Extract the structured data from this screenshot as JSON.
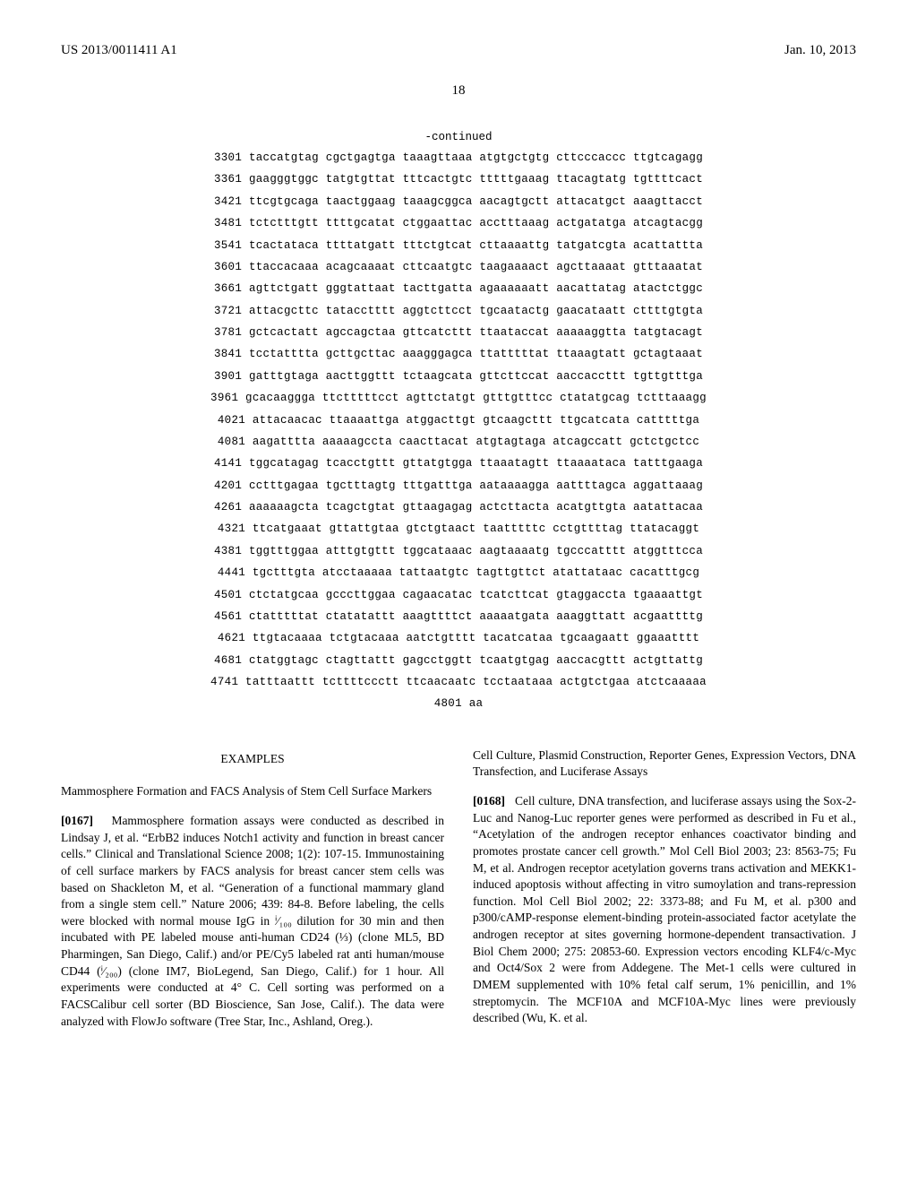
{
  "header": {
    "left": "US 2013/0011411 A1",
    "right": "Jan. 10, 2013"
  },
  "page_number": "18",
  "sequence": {
    "continued_label": "-continued",
    "lines": [
      "3301 taccatgtag cgctgagtga taaagttaaa atgtgctgtg cttcccaccc ttgtcagagg",
      "3361 gaagggtggc tatgtgttat tttcactgtc tttttgaaag ttacagtatg tgttttcact",
      "3421 ttcgtgcaga taactggaag taaagcggca aacagtgctt attacatgct aaagttacct",
      "3481 tctctttgtt ttttgcatat ctggaattac acctttaaag actgatatga atcagtacgg",
      "3541 tcactataca ttttatgatt tttctgtcat cttaaaattg tatgatcgta acattattta",
      "3601 ttaccacaaa acagcaaaat cttcaatgtc taagaaaact agcttaaaat gtttaaatat",
      "3661 agttctgatt gggtattaat tacttgatta agaaaaaatt aacattatag atactctggc",
      "3721 attacgcttc tatacctttt aggtcttcct tgcaatactg gaacataatt cttttgtgta",
      "3781 gctcactatt agccagctaa gttcatcttt ttaataccat aaaaaggtta tatgtacagt",
      "3841 tcctatttta gcttgcttac aaagggagca ttatttttat ttaaagtatt gctagtaaat",
      "3901 gatttgtaga aacttggttt tctaagcata gttcttccat aaccaccttt tgttgtttga",
      "3961 gcacaaggga ttctttttcct agttctatgt gtttgtttcc ctatatgcag tctttaaagg",
      "4021 attacaacac ttaaaattga atggacttgt gtcaagcttt ttgcatcata catttttga",
      "4081 aagatttta aaaaagccta caacttacat atgtagtaga atcagccatt gctctgctcc",
      "4141 tggcatagag tcacctgttt gttatgtgga ttaaatagtt ttaaaataca tatttgaaga",
      "4201 cctttgagaa tgctttagtg tttgatttga aataaaagga aattttagca aggattaaag",
      "4261 aaaaaagcta tcagctgtat gttaagagag actcttacta acatgttgta aatattacaa",
      "4321 ttcatgaaat gttattgtaa gtctgtaact taatttttc cctgttttag ttatacaggt",
      "4381 tggtttggaa atttgtgttt tggcataaac aagtaaaatg tgcccatttt atggtttcca",
      "4441 tgctttgta atcctaaaaa tattaatgtc tagttgttct atattataac cacatttgcg",
      "4501 ctctatgcaa gcccttggaa cagaacatac tcatcttcat gtaggaccta tgaaaattgt",
      "4561 ctatttttat ctatatattt aaagttttct aaaaatgata aaaggttatt acgaattttg",
      "4621 ttgtacaaaa tctgtacaaa aatctgtttt tacatcataa tgcaagaatt ggaaatttt",
      "4681 ctatggtagc ctagttattt gagcctggtt tcaatgtgag aaccacgttt actgttattg",
      "4741 tatttaattt tcttttccctt ttcaacaatc tcctaataaa actgtctgaa atctcaaaaa",
      "4801 aa"
    ]
  },
  "left_column": {
    "examples_heading": "EXAMPLES",
    "subheading": "Mammosphere Formation and FACS Analysis of Stem Cell Surface Markers",
    "para_num": "[0167]",
    "para_text": "Mammosphere formation assays were conducted as described in Lindsay J, et al. “ErbB2 induces Notch1 activity and function in breast cancer cells.” Clinical and Translational Science 2008; 1(2): 107-15. Immunostaining of cell surface markers by FACS analysis for breast cancer stem cells was based on Shackleton M, et al. “Generation of a functional mammary gland from a single stem cell.” Nature 2006; 439: 84-8. Before labeling, the cells were blocked with normal mouse IgG in ⁱ⁄₁₀₀ dilution for 30 min and then incubated with PE labeled mouse anti-human CD24 (⅓) (clone ML5, BD Pharmingen, San Diego, Calif.) and/or PE/Cy5 labeled rat anti human/mouse CD44 (ⁱ⁄₂₀₀) (clone IM7, BioLegend, San Diego, Calif.) for 1 hour. All experiments were conducted at 4° C. Cell sorting was performed on a FACSCalibur cell sorter (BD Bioscience, San Jose, Calif.). The data were analyzed with FlowJo software (Tree Star, Inc., Ashland, Oreg.)."
  },
  "right_column": {
    "subheading": "Cell Culture, Plasmid Construction, Reporter Genes, Expression Vectors, DNA Transfection, and Luciferase Assays",
    "para_num": "[0168]",
    "para_text": "Cell culture, DNA transfection, and luciferase assays using the Sox-2-Luc and Nanog-Luc reporter genes were performed as described in Fu et al., “Acetylation of the androgen receptor enhances coactivator binding and promotes prostate cancer cell growth.” Mol Cell Biol 2003; 23: 8563-75; Fu M, et al. Androgen receptor acetylation governs trans activation and MEKK1-induced apoptosis without affecting in vitro sumoylation and trans-repression function. Mol Cell Biol 2002; 22: 3373-88; and Fu M, et al. p300 and p300/cAMP-response element-binding protein-associated factor acetylate the androgen receptor at sites governing hormone-dependent transactivation. J Biol Chem 2000; 275: 20853-60. Expression vectors encoding KLF4/c-Myc and Oct4/Sox 2 were from Addegene. The Met-1 cells were cultured in DMEM supplemented with 10% fetal calf serum, 1% penicillin, and 1% streptomycin. The MCF10A and MCF10A-Myc lines were previously described (Wu, K. et al."
  }
}
